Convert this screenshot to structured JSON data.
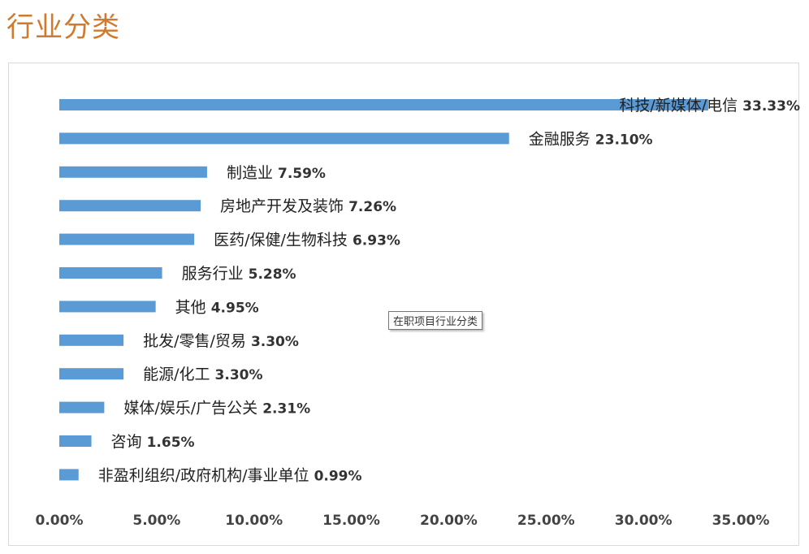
{
  "page": {
    "title": "行业分类"
  },
  "tooltip": {
    "text": "在职项目行业分类"
  },
  "chart_data": {
    "type": "bar",
    "orientation": "horizontal",
    "title": "",
    "xlabel": "",
    "ylabel": "",
    "xlim": [
      0,
      35
    ],
    "x_ticks": [
      "0.00%",
      "5.00%",
      "10.00%",
      "15.00%",
      "20.00%",
      "25.00%",
      "30.00%",
      "35.00%"
    ],
    "grid": false,
    "bar_color": "#5b9bd5",
    "categories": [
      "科技/新媒体/电信",
      "金融服务",
      "制造业",
      "房地产开发及装饰",
      "医药/保健/生物科技",
      "服务行业",
      "其他",
      "批发/零售/贸易",
      "能源/化工",
      "媒体/娱乐/广告公关",
      "咨询",
      "非盈利组织/政府机构/事业单位"
    ],
    "values": [
      33.33,
      23.1,
      7.59,
      7.26,
      6.93,
      5.28,
      4.95,
      3.3,
      3.3,
      2.31,
      1.65,
      0.99
    ],
    "value_labels": [
      "33.33%",
      "23.10%",
      "7.59%",
      "7.26%",
      "6.93%",
      "5.28%",
      "4.95%",
      "3.30%",
      "3.30%",
      "2.31%",
      "1.65%",
      "0.99%"
    ]
  }
}
